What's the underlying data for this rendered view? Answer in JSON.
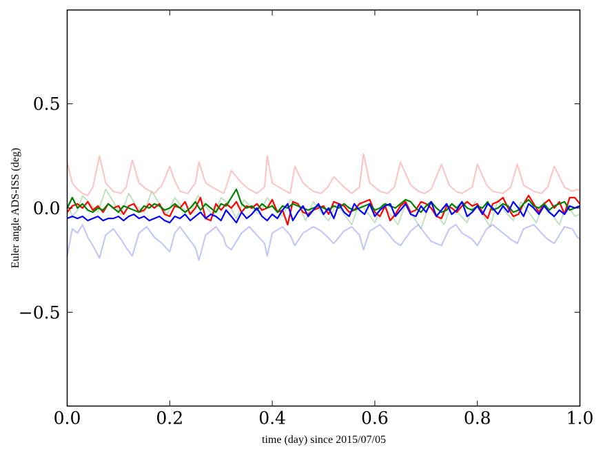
{
  "chart_data": {
    "type": "line",
    "title": "",
    "xlabel": "time (day) since 2015/07/05",
    "ylabel": "Euler angle ADS-ISS (deg)",
    "xlim": [
      0.0,
      1.0
    ],
    "ylim": [
      -0.95,
      0.95
    ],
    "xticks": [
      0.0,
      0.2,
      0.4,
      0.6,
      0.8,
      1.0
    ],
    "xtick_labels": [
      "0.0",
      "0.2",
      "0.4",
      "0.6",
      "0.8",
      "1.0"
    ],
    "yticks": [
      -0.5,
      0.0,
      0.5
    ],
    "ytick_labels": [
      "−0.5",
      "0.0",
      "0.5"
    ],
    "grid": false,
    "legend": "none",
    "series": [
      {
        "color": "#ff9999",
        "opacity": 0.6,
        "x": [
          0.0,
          0.01,
          0.02,
          0.03,
          0.04,
          0.05,
          0.063,
          0.075,
          0.09,
          0.105,
          0.115,
          0.127,
          0.14,
          0.155,
          0.17,
          0.185,
          0.2,
          0.21,
          0.22,
          0.235,
          0.25,
          0.257,
          0.27,
          0.29,
          0.305,
          0.31,
          0.32,
          0.34,
          0.355,
          0.37,
          0.385,
          0.39,
          0.4,
          0.42,
          0.435,
          0.444,
          0.46,
          0.48,
          0.495,
          0.508,
          0.52,
          0.54,
          0.555,
          0.57,
          0.578,
          0.59,
          0.61,
          0.625,
          0.638,
          0.65,
          0.67,
          0.685,
          0.697,
          0.71,
          0.73,
          0.745,
          0.758,
          0.77,
          0.79,
          0.8,
          0.818,
          0.83,
          0.85,
          0.865,
          0.878,
          0.89,
          0.91,
          0.925,
          0.937,
          0.95,
          0.97,
          0.985,
          0.995,
          1.0
        ],
        "y": [
          0.22,
          0.12,
          0.09,
          0.07,
          0.06,
          0.1,
          0.25,
          0.12,
          0.08,
          0.07,
          0.1,
          0.23,
          0.12,
          0.09,
          0.07,
          0.11,
          0.2,
          0.13,
          0.08,
          0.07,
          0.12,
          0.22,
          0.12,
          0.09,
          0.07,
          0.1,
          0.18,
          0.12,
          0.09,
          0.07,
          0.1,
          0.25,
          0.12,
          0.09,
          0.07,
          0.2,
          0.12,
          0.08,
          0.07,
          0.1,
          0.15,
          0.1,
          0.07,
          0.1,
          0.26,
          0.12,
          0.08,
          0.07,
          0.1,
          0.22,
          0.11,
          0.08,
          0.07,
          0.09,
          0.21,
          0.11,
          0.08,
          0.07,
          0.1,
          0.21,
          0.11,
          0.08,
          0.07,
          0.1,
          0.21,
          0.11,
          0.08,
          0.07,
          0.1,
          0.2,
          0.1,
          0.08,
          0.09,
          0.08
        ]
      },
      {
        "color": "#99cc99",
        "opacity": 0.6,
        "x": [
          0.0,
          0.01,
          0.02,
          0.03,
          0.045,
          0.06,
          0.075,
          0.09,
          0.105,
          0.12,
          0.135,
          0.15,
          0.165,
          0.18,
          0.195,
          0.21,
          0.225,
          0.24,
          0.255,
          0.27,
          0.285,
          0.3,
          0.315,
          0.33,
          0.345,
          0.36,
          0.375,
          0.39,
          0.405,
          0.42,
          0.435,
          0.45,
          0.465,
          0.48,
          0.495,
          0.51,
          0.525,
          0.54,
          0.555,
          0.57,
          0.585,
          0.6,
          0.615,
          0.63,
          0.645,
          0.66,
          0.675,
          0.69,
          0.705,
          0.72,
          0.735,
          0.75,
          0.765,
          0.78,
          0.795,
          0.81,
          0.825,
          0.84,
          0.855,
          0.87,
          0.885,
          0.9,
          0.915,
          0.93,
          0.945,
          0.96,
          0.975,
          0.99,
          1.0
        ],
        "y": [
          0.02,
          -0.04,
          -0.01,
          0.06,
          0.02,
          -0.02,
          0.09,
          0.03,
          -0.03,
          0.07,
          0.01,
          -0.02,
          0.08,
          0.02,
          -0.03,
          0.05,
          0.0,
          -0.03,
          0.06,
          0.01,
          -0.04,
          0.05,
          0.02,
          -0.05,
          0.04,
          0.0,
          -0.03,
          0.05,
          0.0,
          -0.04,
          0.04,
          0.02,
          -0.06,
          0.03,
          -0.02,
          -0.06,
          0.02,
          -0.03,
          -0.08,
          0.03,
          -0.02,
          -0.07,
          0.02,
          -0.03,
          -0.08,
          0.02,
          -0.04,
          -0.1,
          0.01,
          -0.03,
          -0.08,
          0.02,
          -0.03,
          -0.07,
          0.03,
          -0.03,
          -0.09,
          0.04,
          -0.02,
          -0.06,
          0.03,
          -0.02,
          -0.07,
          0.03,
          -0.03,
          -0.08,
          0.02,
          -0.04,
          -0.03
        ]
      },
      {
        "color": "#9999ff",
        "opacity": 0.6,
        "x": [
          0.0,
          0.01,
          0.02,
          0.03,
          0.04,
          0.05,
          0.063,
          0.075,
          0.09,
          0.105,
          0.115,
          0.127,
          0.14,
          0.155,
          0.17,
          0.185,
          0.2,
          0.21,
          0.22,
          0.235,
          0.25,
          0.257,
          0.27,
          0.29,
          0.305,
          0.31,
          0.32,
          0.34,
          0.355,
          0.37,
          0.385,
          0.39,
          0.4,
          0.42,
          0.435,
          0.444,
          0.46,
          0.48,
          0.495,
          0.508,
          0.52,
          0.54,
          0.555,
          0.57,
          0.578,
          0.59,
          0.61,
          0.625,
          0.638,
          0.65,
          0.67,
          0.685,
          0.697,
          0.71,
          0.73,
          0.745,
          0.758,
          0.77,
          0.79,
          0.8,
          0.818,
          0.83,
          0.85,
          0.865,
          0.878,
          0.89,
          0.91,
          0.925,
          0.937,
          0.95,
          0.97,
          0.985,
          0.995,
          1.0
        ],
        "y": [
          -0.23,
          -0.1,
          -0.12,
          -0.08,
          -0.14,
          -0.18,
          -0.24,
          -0.13,
          -0.1,
          -0.15,
          -0.19,
          -0.23,
          -0.12,
          -0.09,
          -0.14,
          -0.17,
          -0.21,
          -0.12,
          -0.09,
          -0.14,
          -0.19,
          -0.25,
          -0.13,
          -0.09,
          -0.14,
          -0.18,
          -0.2,
          -0.12,
          -0.09,
          -0.13,
          -0.17,
          -0.23,
          -0.12,
          -0.09,
          -0.13,
          -0.18,
          -0.12,
          -0.09,
          -0.11,
          -0.14,
          -0.17,
          -0.11,
          -0.09,
          -0.13,
          -0.2,
          -0.11,
          -0.08,
          -0.12,
          -0.16,
          -0.18,
          -0.11,
          -0.08,
          -0.12,
          -0.16,
          -0.18,
          -0.1,
          -0.08,
          -0.12,
          -0.15,
          -0.18,
          -0.1,
          -0.08,
          -0.12,
          -0.15,
          -0.17,
          -0.1,
          -0.08,
          -0.12,
          -0.15,
          -0.17,
          -0.09,
          -0.1,
          -0.14,
          -0.15
        ]
      },
      {
        "color": "#ff0000",
        "opacity": 1.0,
        "x": [
          0.0,
          0.01,
          0.02,
          0.03,
          0.04,
          0.05,
          0.06,
          0.07,
          0.08,
          0.09,
          0.1,
          0.11,
          0.12,
          0.13,
          0.14,
          0.15,
          0.16,
          0.17,
          0.18,
          0.19,
          0.2,
          0.21,
          0.22,
          0.23,
          0.24,
          0.25,
          0.26,
          0.27,
          0.28,
          0.29,
          0.3,
          0.31,
          0.32,
          0.33,
          0.34,
          0.35,
          0.36,
          0.37,
          0.38,
          0.39,
          0.4,
          0.41,
          0.42,
          0.43,
          0.44,
          0.45,
          0.46,
          0.47,
          0.48,
          0.49,
          0.5,
          0.51,
          0.52,
          0.53,
          0.54,
          0.55,
          0.56,
          0.57,
          0.58,
          0.59,
          0.6,
          0.61,
          0.62,
          0.63,
          0.64,
          0.65,
          0.66,
          0.67,
          0.68,
          0.69,
          0.7,
          0.71,
          0.72,
          0.73,
          0.74,
          0.75,
          0.76,
          0.77,
          0.78,
          0.79,
          0.8,
          0.81,
          0.82,
          0.83,
          0.84,
          0.85,
          0.86,
          0.87,
          0.88,
          0.89,
          0.9,
          0.91,
          0.92,
          0.93,
          0.94,
          0.95,
          0.96,
          0.97,
          0.98,
          0.99,
          1.0
        ],
        "y": [
          -0.02,
          0.01,
          0.02,
          0.0,
          0.03,
          -0.01,
          0.01,
          -0.02,
          0.02,
          0.0,
          0.01,
          -0.03,
          0.01,
          0.02,
          -0.02,
          -0.01,
          0.02,
          0.0,
          0.02,
          -0.03,
          -0.04,
          0.01,
          0.0,
          0.03,
          -0.03,
          0.0,
          0.05,
          -0.05,
          -0.06,
          0.02,
          -0.01,
          0.02,
          0.0,
          0.03,
          -0.02,
          0.01,
          0.0,
          0.02,
          -0.01,
          0.0,
          0.04,
          -0.02,
          -0.01,
          -0.08,
          0.03,
          0.02,
          -0.02,
          -0.03,
          -0.01,
          0.0,
          0.01,
          -0.03,
          0.03,
          0.02,
          0.01,
          -0.02,
          -0.01,
          0.02,
          0.03,
          0.04,
          -0.02,
          -0.04,
          0.01,
          -0.06,
          -0.03,
          0.01,
          0.03,
          -0.02,
          -0.01,
          0.03,
          0.02,
          0.0,
          -0.04,
          -0.05,
          0.01,
          0.0,
          -0.02,
          0.01,
          0.03,
          0.01,
          0.02,
          -0.02,
          -0.05,
          0.02,
          0.03,
          0.05,
          0.0,
          -0.04,
          -0.03,
          0.02,
          0.06,
          0.02,
          -0.02,
          0.02,
          0.04,
          0.0,
          0.03,
          -0.03,
          0.05,
          0.05,
          0.02
        ]
      },
      {
        "color": "#007f00",
        "opacity": 1.0,
        "x": [
          0.0,
          0.01,
          0.02,
          0.03,
          0.04,
          0.05,
          0.06,
          0.07,
          0.08,
          0.09,
          0.1,
          0.11,
          0.12,
          0.13,
          0.14,
          0.15,
          0.16,
          0.17,
          0.18,
          0.19,
          0.2,
          0.21,
          0.22,
          0.23,
          0.24,
          0.25,
          0.26,
          0.27,
          0.28,
          0.29,
          0.3,
          0.31,
          0.32,
          0.33,
          0.34,
          0.35,
          0.36,
          0.37,
          0.38,
          0.39,
          0.4,
          0.41,
          0.42,
          0.43,
          0.44,
          0.45,
          0.46,
          0.47,
          0.48,
          0.49,
          0.5,
          0.51,
          0.52,
          0.53,
          0.54,
          0.55,
          0.56,
          0.57,
          0.58,
          0.59,
          0.6,
          0.61,
          0.62,
          0.63,
          0.64,
          0.65,
          0.66,
          0.67,
          0.68,
          0.69,
          0.7,
          0.71,
          0.72,
          0.73,
          0.74,
          0.75,
          0.76,
          0.77,
          0.78,
          0.79,
          0.8,
          0.81,
          0.82,
          0.83,
          0.84,
          0.85,
          0.86,
          0.87,
          0.88,
          0.89,
          0.9,
          0.91,
          0.92,
          0.93,
          0.94,
          0.95,
          0.96,
          0.97,
          0.98,
          0.99,
          1.0
        ],
        "y": [
          0.0,
          0.05,
          0.0,
          0.02,
          -0.01,
          -0.02,
          0.0,
          -0.01,
          0.02,
          0.0,
          -0.02,
          0.01,
          0.0,
          -0.01,
          -0.02,
          0.01,
          0.0,
          0.02,
          0.01,
          -0.01,
          0.0,
          0.02,
          0.0,
          -0.02,
          0.0,
          0.03,
          -0.01,
          0.02,
          0.0,
          -0.02,
          0.02,
          0.01,
          0.05,
          0.09,
          0.02,
          0.0,
          0.01,
          -0.01,
          0.02,
          0.0,
          0.01,
          -0.02,
          0.01,
          0.0,
          0.02,
          0.01,
          0.0,
          -0.01,
          0.0,
          0.01,
          0.0,
          -0.01,
          0.01,
          0.0,
          0.02,
          0.0,
          -0.01,
          0.0,
          0.01,
          0.02,
          -0.01,
          0.0,
          0.02,
          0.01,
          0.0,
          0.02,
          0.04,
          0.03,
          0.0,
          -0.02,
          0.01,
          0.03,
          0.0,
          -0.02,
          -0.01,
          0.02,
          0.0,
          0.03,
          0.0,
          -0.01,
          0.01,
          0.0,
          0.03,
          -0.01,
          0.0,
          0.02,
          0.01,
          -0.02,
          -0.01,
          0.02,
          0.04,
          0.01,
          0.0,
          0.02,
          -0.01,
          0.01,
          0.02,
          0.03,
          -0.01,
          0.0,
          0.01
        ]
      },
      {
        "color": "#0000ff",
        "opacity": 1.0,
        "x": [
          0.0,
          0.01,
          0.02,
          0.03,
          0.04,
          0.05,
          0.06,
          0.07,
          0.08,
          0.09,
          0.1,
          0.11,
          0.12,
          0.13,
          0.14,
          0.15,
          0.16,
          0.17,
          0.18,
          0.19,
          0.2,
          0.21,
          0.22,
          0.23,
          0.24,
          0.25,
          0.26,
          0.27,
          0.28,
          0.29,
          0.3,
          0.31,
          0.32,
          0.33,
          0.34,
          0.35,
          0.36,
          0.37,
          0.38,
          0.39,
          0.4,
          0.41,
          0.42,
          0.43,
          0.44,
          0.45,
          0.46,
          0.47,
          0.48,
          0.49,
          0.5,
          0.51,
          0.52,
          0.53,
          0.54,
          0.55,
          0.56,
          0.57,
          0.58,
          0.59,
          0.6,
          0.61,
          0.62,
          0.63,
          0.64,
          0.65,
          0.66,
          0.67,
          0.68,
          0.69,
          0.7,
          0.71,
          0.72,
          0.73,
          0.74,
          0.75,
          0.76,
          0.77,
          0.78,
          0.79,
          0.8,
          0.81,
          0.82,
          0.83,
          0.84,
          0.85,
          0.86,
          0.87,
          0.88,
          0.89,
          0.9,
          0.91,
          0.92,
          0.93,
          0.94,
          0.95,
          0.96,
          0.97,
          0.98,
          0.99,
          1.0
        ],
        "y": [
          -0.05,
          -0.04,
          -0.05,
          -0.04,
          -0.06,
          -0.05,
          -0.04,
          -0.06,
          -0.05,
          -0.05,
          -0.04,
          -0.06,
          -0.04,
          -0.03,
          -0.05,
          -0.04,
          -0.06,
          -0.05,
          -0.04,
          -0.06,
          -0.07,
          -0.04,
          -0.05,
          -0.03,
          -0.06,
          -0.04,
          -0.02,
          -0.05,
          -0.03,
          -0.04,
          -0.06,
          -0.01,
          -0.04,
          -0.07,
          -0.02,
          -0.05,
          -0.03,
          0.0,
          -0.04,
          -0.06,
          -0.03,
          -0.05,
          -0.01,
          0.02,
          -0.06,
          -0.02,
          0.01,
          -0.04,
          -0.01,
          0.02,
          -0.03,
          0.0,
          -0.05,
          0.02,
          -0.02,
          -0.04,
          0.02,
          -0.01,
          -0.03,
          0.02,
          -0.04,
          -0.01,
          0.01,
          0.02,
          -0.04,
          -0.01,
          0.02,
          -0.03,
          -0.04,
          0.01,
          -0.02,
          0.03,
          -0.04,
          -0.01,
          0.02,
          -0.03,
          -0.01,
          0.03,
          -0.04,
          -0.02,
          0.01,
          -0.03,
          0.02,
          0.0,
          -0.03,
          0.01,
          -0.02,
          0.03,
          0.0,
          -0.04,
          0.02,
          0.0,
          -0.03,
          0.01,
          -0.02,
          -0.04,
          -0.01,
          -0.03,
          0.01,
          0.0,
          0.01
        ]
      }
    ]
  }
}
